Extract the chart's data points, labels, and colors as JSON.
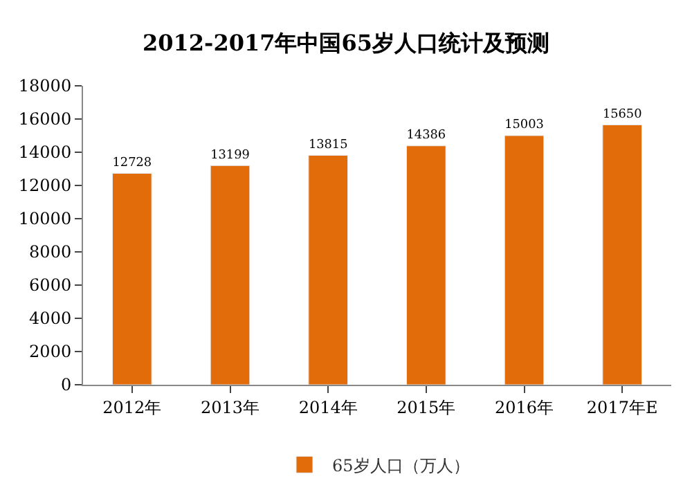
{
  "chart_data": {
    "type": "bar",
    "title": "2012-2017年中国65岁人口统计及预测",
    "categories": [
      "2012年",
      "2013年",
      "2014年",
      "2015年",
      "2016年",
      "2017年E"
    ],
    "series": [
      {
        "name": "65岁人口（万人）",
        "color": "#e36c0a",
        "values": [
          12728,
          13199,
          13815,
          14386,
          15003,
          15650
        ]
      }
    ],
    "ylim": [
      0,
      18000
    ],
    "yticks": [
      0,
      2000,
      4000,
      6000,
      8000,
      10000,
      12000,
      14000,
      16000,
      18000
    ],
    "data_labels": true,
    "grid": false,
    "legend": "bottom"
  }
}
